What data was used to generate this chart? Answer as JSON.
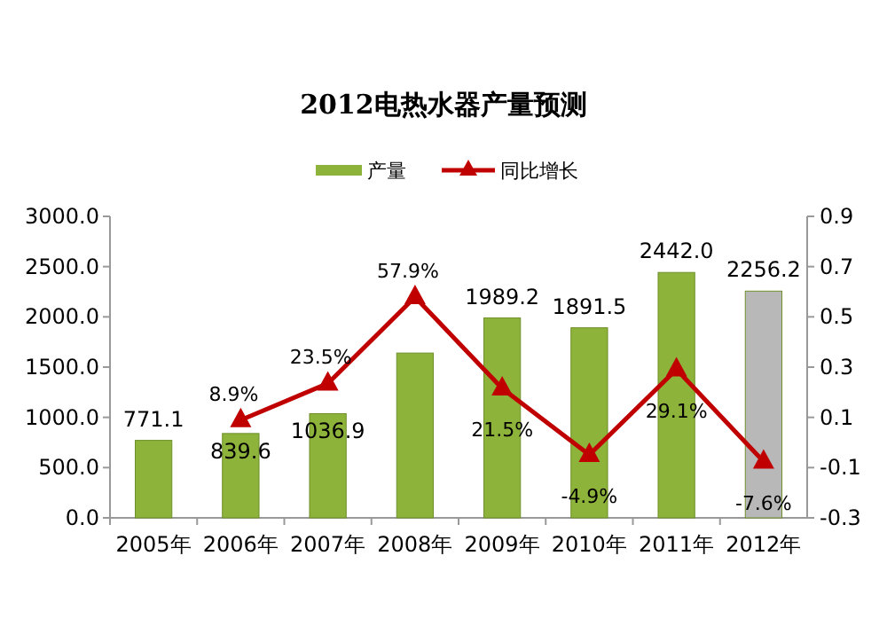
{
  "chart_data": {
    "type": "bar",
    "title": "2012电热水器产量预测",
    "categories": [
      "2005年",
      "2006年",
      "2007年",
      "2008年",
      "2009年",
      "2010年",
      "2011年",
      "2012年"
    ],
    "series": [
      {
        "name": "产量",
        "colors": [
          "#8db33a",
          "#8db33a",
          "#8db33a",
          "#8db33a",
          "#8db33a",
          "#8db33a",
          "#8db33a",
          "#b8b8b8"
        ],
        "color": "#8db33a",
        "values": [
          771.1,
          839.6,
          1036.9,
          1640,
          1989.2,
          1891.5,
          2442.0,
          2256.2
        ],
        "value_labels": [
          "771.1",
          "839.6",
          "1036.9",
          null,
          "1989.2",
          "1891.5",
          "2442.0",
          "2256.2"
        ]
      },
      {
        "name": "同比增长",
        "type": "line",
        "axis": "y2",
        "color": "#c00000",
        "marker": "triangle",
        "values": [
          null,
          0.089,
          0.235,
          0.579,
          0.215,
          -0.049,
          0.291,
          -0.076
        ],
        "value_labels": [
          null,
          "8.9%",
          "23.5%",
          "57.9%",
          "21.5%",
          "-4.9%",
          "29.1%",
          "-7.6%"
        ]
      }
    ],
    "ylim": [
      0,
      3000
    ],
    "yticks": [
      {
        "value": 0,
        "label": "0.0"
      },
      {
        "value": 500,
        "label": "500.0"
      },
      {
        "value": 1000,
        "label": "1000.0"
      },
      {
        "value": 1500,
        "label": "1500.0"
      },
      {
        "value": 2000,
        "label": "2000.0"
      },
      {
        "value": 2500,
        "label": "2500.0"
      },
      {
        "value": 3000,
        "label": "3000.0"
      }
    ],
    "y2lim": [
      -0.3,
      0.9
    ],
    "y2ticks": [
      -0.3,
      -0.1,
      0.1,
      0.3,
      0.5,
      0.7,
      0.9
    ],
    "legend": "top",
    "grid": false
  }
}
